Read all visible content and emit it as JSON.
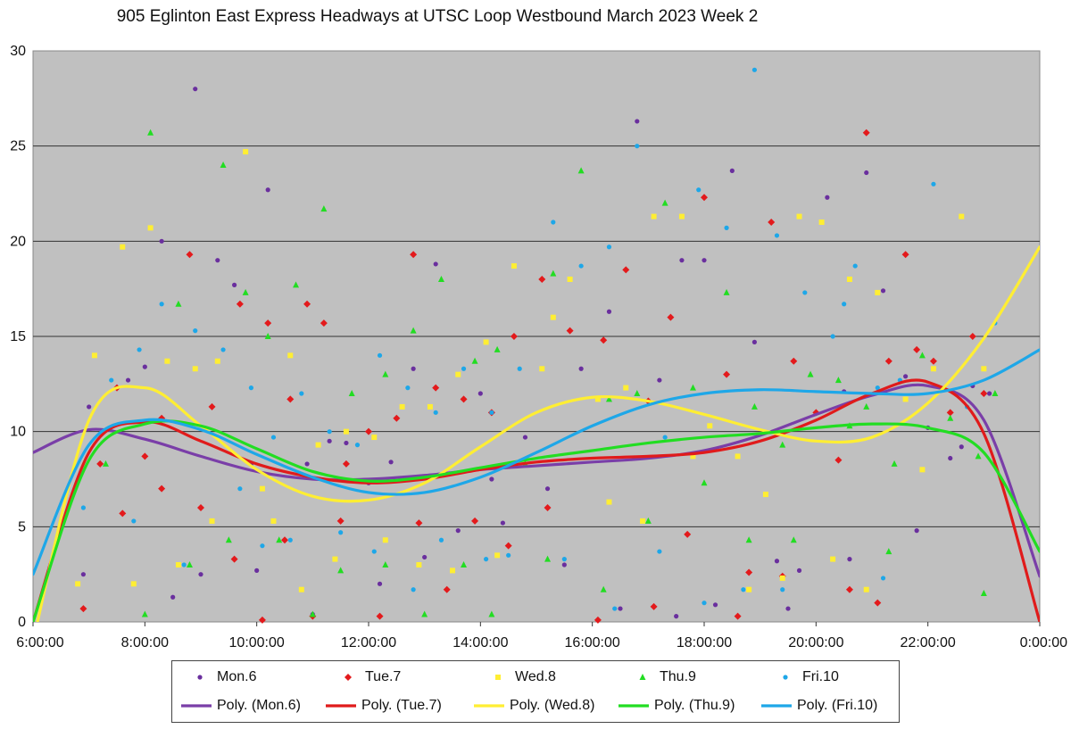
{
  "chart_data": {
    "type": "scatter",
    "title": "905 Eglinton East Express Headways at UTSC Loop Westbound March 2023  Week 2",
    "xlabel": "",
    "ylabel": "",
    "xlim": [
      6,
      24
    ],
    "ylim": [
      0,
      30
    ],
    "x_tick_labels": [
      "6:00:00",
      "8:00:00",
      "10:00:00",
      "12:00:00",
      "14:00:00",
      "16:00:00",
      "18:00:00",
      "20:00:00",
      "22:00:00",
      "0:00:00"
    ],
    "y_tick_labels": [
      "0",
      "5",
      "10",
      "15",
      "20",
      "25",
      "30"
    ],
    "grid": "horizontal",
    "legend_position": "bottom",
    "series": [
      {
        "name": "Mon.6",
        "color": "#6a2f9e",
        "marker": "circle",
        "x": [
          7.0,
          7.7,
          8.0,
          8.3,
          8.9,
          9.3,
          9.6,
          9.9,
          10.2,
          10.6,
          10.9,
          11.3,
          11.6,
          12.0,
          12.4,
          12.8,
          13.2,
          13.6,
          14.0,
          14.4,
          14.8,
          15.2,
          15.8,
          16.3,
          16.8,
          17.2,
          17.6,
          18.0,
          18.5,
          18.9,
          19.3,
          19.7,
          20.2,
          20.6,
          20.9,
          21.2,
          21.6,
          22.0,
          22.4,
          22.8,
          23.1,
          6.9,
          8.5,
          9.0,
          10.0,
          11.0,
          12.2,
          13.0,
          14.2,
          15.5,
          16.5,
          17.5,
          18.2,
          19.5,
          20.5,
          21.8,
          22.6
        ],
        "y": [
          11.3,
          12.7,
          13.4,
          20,
          28,
          19,
          17.7,
          8.3,
          22.7,
          11.7,
          8.3,
          9.5,
          9.4,
          7.3,
          8.4,
          13.3,
          18.8,
          4.8,
          12,
          5.2,
          9.7,
          7,
          13.3,
          16.3,
          26.3,
          12.7,
          19,
          19,
          23.7,
          14.7,
          3.2,
          2.7,
          22.3,
          3.3,
          23.6,
          17.4,
          12.9,
          10.2,
          8.6,
          12.4,
          12,
          2.5,
          1.3,
          2.5,
          2.7,
          0.4,
          2.0,
          3.4,
          7.5,
          3.0,
          0.7,
          0.3,
          0.9,
          0.7,
          12.1,
          4.8,
          9.2
        ]
      },
      {
        "name": "Tue.7",
        "color": "#e31a1c",
        "marker": "diamond",
        "x": [
          7.2,
          7.5,
          8.0,
          8.3,
          8.8,
          9.2,
          9.7,
          10.2,
          10.6,
          10.9,
          11.2,
          11.6,
          12.0,
          12.5,
          12.8,
          13.2,
          13.7,
          14.2,
          14.6,
          15.1,
          15.6,
          16.2,
          16.6,
          17.0,
          17.4,
          18.0,
          18.4,
          18.8,
          19.2,
          19.6,
          20.0,
          20.4,
          20.9,
          21.3,
          21.6,
          21.8,
          22.1,
          22.4,
          22.8,
          23.0,
          6.9,
          7.6,
          8.3,
          9.0,
          9.6,
          10.1,
          10.5,
          11.0,
          11.5,
          12.2,
          12.9,
          13.4,
          13.9,
          14.5,
          15.2,
          16.1,
          17.1,
          17.7,
          18.6,
          19.4,
          20.6,
          21.1
        ],
        "y": [
          8.3,
          12.3,
          8.7,
          7,
          19.3,
          11.3,
          16.7,
          15.7,
          11.7,
          16.7,
          15.7,
          8.3,
          10,
          10.7,
          19.3,
          12.3,
          11.7,
          11,
          15,
          18,
          15.3,
          14.8,
          18.5,
          11.6,
          16,
          22.3,
          13,
          2.6,
          21,
          13.7,
          11,
          8.5,
          25.7,
          13.7,
          19.3,
          14.3,
          13.7,
          11,
          15,
          12,
          0.7,
          5.7,
          10.7,
          6.0,
          3.3,
          0.1,
          4.3,
          0.3,
          5.3,
          0.3,
          5.2,
          1.7,
          5.3,
          4.0,
          6.0,
          0.1,
          0.8,
          4.6,
          0.3,
          2.4,
          1.7,
          1.0
        ]
      },
      {
        "name": "Wed.8",
        "color": "#ffee33",
        "marker": "square",
        "x": [
          7.1,
          7.6,
          8.1,
          8.4,
          8.9,
          9.3,
          9.8,
          10.1,
          10.6,
          11.1,
          11.6,
          12.1,
          12.6,
          13.1,
          13.6,
          14.1,
          14.6,
          15.1,
          15.6,
          16.1,
          16.6,
          17.1,
          17.6,
          18.1,
          18.6,
          19.1,
          19.7,
          20.1,
          20.6,
          21.1,
          21.6,
          22.1,
          22.6,
          23.0,
          6.8,
          7.8,
          8.6,
          9.2,
          10.3,
          10.8,
          11.4,
          12.3,
          12.9,
          13.5,
          14.3,
          15.3,
          16.3,
          16.9,
          17.8,
          18.8,
          19.4,
          20.3,
          20.9,
          21.9
        ],
        "y": [
          14,
          19.7,
          20.7,
          13.7,
          13.3,
          13.7,
          24.7,
          7,
          14,
          9.3,
          10,
          9.7,
          11.3,
          11.3,
          13,
          14.7,
          18.7,
          13.3,
          18,
          11.7,
          12.3,
          21.3,
          21.3,
          10.3,
          8.7,
          6.7,
          21.3,
          21,
          18,
          17.3,
          11.7,
          13.3,
          21.3,
          13.3,
          2.0,
          2.0,
          3.0,
          5.3,
          5.3,
          1.7,
          3.3,
          4.3,
          3.0,
          2.7,
          3.5,
          16.0,
          6.3,
          5.3,
          8.7,
          1.7,
          2.3,
          3.3,
          1.7,
          8.0
        ]
      },
      {
        "name": "Thu.9",
        "color": "#22dd22",
        "marker": "triangle",
        "x": [
          7.3,
          8.1,
          8.6,
          9.4,
          9.8,
          10.2,
          10.7,
          11.2,
          11.7,
          12.3,
          12.8,
          13.3,
          13.9,
          14.3,
          14.8,
          15.3,
          15.8,
          16.3,
          16.8,
          17.3,
          17.8,
          18.4,
          18.9,
          19.4,
          19.9,
          20.4,
          20.9,
          21.4,
          21.9,
          22.4,
          22.9,
          23.2,
          8.0,
          8.8,
          9.5,
          10.4,
          11.0,
          11.5,
          12.3,
          13.0,
          13.7,
          14.2,
          15.2,
          16.2,
          17.0,
          18.0,
          18.8,
          19.6,
          20.6,
          21.3,
          23.0
        ],
        "y": [
          8.3,
          25.7,
          16.7,
          24,
          17.3,
          15,
          17.7,
          21.7,
          12,
          13,
          15.3,
          18,
          13.7,
          14.3,
          8.3,
          18.3,
          23.7,
          11.7,
          12,
          22,
          12.3,
          17.3,
          11.3,
          9.3,
          13,
          12.7,
          11.3,
          8.3,
          14,
          10.7,
          8.7,
          12,
          0.4,
          3.0,
          4.3,
          4.3,
          0.4,
          2.7,
          3.0,
          0.4,
          3.0,
          0.4,
          3.3,
          1.7,
          5.3,
          7.3,
          4.3,
          4.3,
          10.3,
          3.7,
          1.5
        ]
      },
      {
        "name": "Fri.10",
        "color": "#1ea7e8",
        "marker": "circle",
        "x": [
          6.9,
          7.4,
          7.9,
          8.3,
          8.9,
          9.4,
          9.9,
          10.3,
          10.8,
          11.3,
          11.8,
          12.2,
          12.7,
          13.2,
          13.7,
          14.2,
          14.7,
          15.3,
          15.8,
          16.3,
          16.8,
          17.3,
          17.9,
          18.4,
          18.9,
          19.3,
          19.8,
          20.3,
          20.7,
          21.1,
          21.5,
          22.1,
          22.7,
          23.2,
          7.8,
          8.7,
          9.7,
          10.1,
          10.6,
          11.5,
          12.1,
          12.8,
          13.3,
          14.1,
          14.5,
          15.5,
          16.4,
          17.2,
          18.0,
          18.7,
          19.4,
          20.5,
          21.2
        ],
        "y": [
          6,
          12.7,
          14.3,
          16.7,
          15.3,
          14.3,
          12.3,
          9.7,
          12,
          10,
          9.3,
          14,
          12.3,
          11,
          13.3,
          11,
          13.3,
          21,
          18.7,
          19.7,
          25,
          9.7,
          22.7,
          20.7,
          29,
          20.3,
          17.3,
          15,
          18.7,
          12.3,
          12.7,
          23,
          11.3,
          15.7,
          5.3,
          3.0,
          7.0,
          4.0,
          4.3,
          4.7,
          3.7,
          1.7,
          4.3,
          3.3,
          3.5,
          3.3,
          0.7,
          3.7,
          1.0,
          1.7,
          1.7,
          16.7,
          2.3
        ]
      }
    ],
    "trendlines": [
      {
        "name": "Poly. (Mon.6)",
        "color": "#7a3ea8",
        "x": [
          6,
          7,
          8,
          9,
          10,
          11,
          12,
          13,
          14,
          15,
          16,
          17,
          18,
          19,
          20,
          21,
          22,
          23,
          24
        ],
        "y": [
          8.9,
          10.1,
          9.6,
          8.7,
          7.9,
          7.5,
          7.5,
          7.7,
          8.0,
          8.2,
          8.4,
          8.6,
          9.0,
          9.8,
          10.9,
          11.9,
          12.4,
          10.6,
          2.4
        ]
      },
      {
        "name": "Poly. (Tue.7)",
        "color": "#e01b1b",
        "x": [
          6,
          7,
          8,
          9,
          10,
          11,
          12,
          13,
          14,
          15,
          16,
          17,
          18,
          19,
          20,
          21,
          22,
          23,
          24
        ],
        "y": [
          0,
          8.9,
          10.5,
          9.5,
          8.3,
          7.6,
          7.3,
          7.5,
          8.0,
          8.4,
          8.6,
          8.7,
          8.9,
          9.5,
          10.6,
          12.0,
          12.6,
          9.9,
          0
        ]
      },
      {
        "name": "Poly. (Wed.8)",
        "color": "#ffee33",
        "x": [
          6,
          7,
          8,
          9,
          10,
          11,
          12,
          13,
          14,
          15,
          16,
          17,
          18,
          19,
          20,
          21,
          22,
          23,
          24
        ],
        "y": [
          -1.0,
          10.6,
          12.3,
          10.3,
          8.0,
          6.6,
          6.4,
          7.3,
          9.2,
          11.0,
          11.8,
          11.6,
          10.9,
          10.1,
          9.5,
          9.7,
          11.5,
          14.9,
          19.7
        ]
      },
      {
        "name": "Poly. (Thu.9)",
        "color": "#22dd22",
        "x": [
          6,
          7,
          8,
          9,
          10,
          11,
          12,
          13,
          14,
          15,
          16,
          17,
          18,
          19,
          20,
          21,
          22,
          23,
          24
        ],
        "y": [
          0,
          8.5,
          10.4,
          10.3,
          9.1,
          7.9,
          7.4,
          7.6,
          8.1,
          8.6,
          9.0,
          9.4,
          9.7,
          9.9,
          10.2,
          10.4,
          10.2,
          8.9,
          3.7
        ]
      },
      {
        "name": "Poly. (Fri.10)",
        "color": "#1ea7e8",
        "x": [
          6,
          7,
          8,
          9,
          10,
          11,
          12,
          13,
          14,
          15,
          16,
          17,
          18,
          19,
          20,
          21,
          22,
          23,
          24
        ],
        "y": [
          2.5,
          9.3,
          10.6,
          10.1,
          8.8,
          7.6,
          6.8,
          6.8,
          7.6,
          8.9,
          10.3,
          11.4,
          12.0,
          12.2,
          12.1,
          12.0,
          12.0,
          12.7,
          14.3
        ]
      }
    ]
  }
}
